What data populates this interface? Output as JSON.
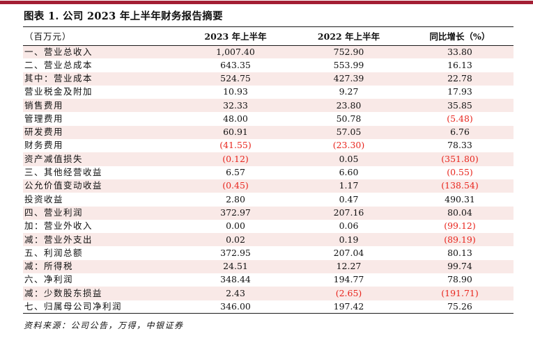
{
  "page": {
    "title": "图表 1. 公司 2023 年上半年财务报告摘要",
    "source_note": "资料来源：公司公告，万得，中银证券"
  },
  "colors": {
    "accent_bar": "#a31f34",
    "row_stripe": "#f9e9e7",
    "negative": "#e8251d"
  },
  "table": {
    "columns": [
      "（百万元）",
      "2023 年上半年",
      "2022 年上半年",
      "同比增长（%）"
    ],
    "rows": [
      {
        "label": "一、营业总收入",
        "v2023": "1,007.40",
        "v2022": "752.90",
        "yoy": "33.80"
      },
      {
        "label": "二、营业总成本",
        "v2023": "643.35",
        "v2022": "553.99",
        "yoy": "16.13"
      },
      {
        "label": "其中：营业成本",
        "v2023": "524.75",
        "v2022": "427.39",
        "yoy": "22.78"
      },
      {
        "label": "营业税金及附加",
        "v2023": "10.93",
        "v2022": "9.27",
        "yoy": "17.93"
      },
      {
        "label": "销售费用",
        "v2023": "32.33",
        "v2022": "23.80",
        "yoy": "35.85"
      },
      {
        "label": "管理费用",
        "v2023": "48.00",
        "v2022": "50.78",
        "yoy": "(5.48)"
      },
      {
        "label": "研发费用",
        "v2023": "60.91",
        "v2022": "57.05",
        "yoy": "6.76"
      },
      {
        "label": "财务费用",
        "v2023": "(41.55)",
        "v2022": "(23.30)",
        "yoy": "78.33"
      },
      {
        "label": "资产减值损失",
        "v2023": "(0.12)",
        "v2022": "0.05",
        "yoy": "(351.80)"
      },
      {
        "label": "三、其他经营收益",
        "v2023": "6.57",
        "v2022": "6.60",
        "yoy": "(0.55)"
      },
      {
        "label": "公允价值变动收益",
        "v2023": "(0.45)",
        "v2022": "1.17",
        "yoy": "(138.54)"
      },
      {
        "label": "投资收益",
        "v2023": "2.80",
        "v2022": "0.47",
        "yoy": "490.31"
      },
      {
        "label": "四、营业利润",
        "v2023": "372.97",
        "v2022": "207.16",
        "yoy": "80.04"
      },
      {
        "label": "加：营业外收入",
        "v2023": "0.00",
        "v2022": "0.06",
        "yoy": "(99.12)"
      },
      {
        "label": "减：营业外支出",
        "v2023": "0.02",
        "v2022": "0.19",
        "yoy": "(89.19)"
      },
      {
        "label": "五、利润总额",
        "v2023": "372.95",
        "v2022": "207.04",
        "yoy": "80.13"
      },
      {
        "label": "减：所得税",
        "v2023": "24.51",
        "v2022": "12.27",
        "yoy": "99.74"
      },
      {
        "label": "六、净利润",
        "v2023": "348.44",
        "v2022": "194.77",
        "yoy": "78.90"
      },
      {
        "label": "减：少数股东损益",
        "v2023": "2.43",
        "v2022": "(2.65)",
        "yoy": "(191.71)"
      },
      {
        "label": "七、归属母公司净利润",
        "v2023": "346.00",
        "v2022": "197.42",
        "yoy": "75.26"
      }
    ]
  }
}
